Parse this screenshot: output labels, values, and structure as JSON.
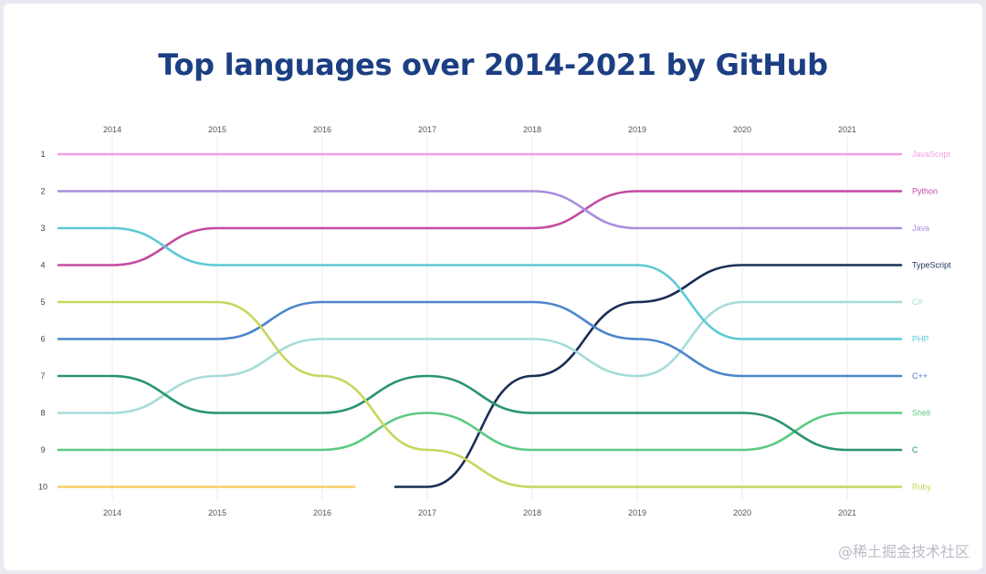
{
  "chart_data": {
    "type": "line",
    "subtype": "bump",
    "title": "Top languages over 2014-2021 by GitHub",
    "years": [
      "2014",
      "2015",
      "2016",
      "2017",
      "2018",
      "2019",
      "2020",
      "2021"
    ],
    "ranks": [
      "1",
      "2",
      "3",
      "4",
      "5",
      "6",
      "7",
      "8",
      "9",
      "10"
    ],
    "grid": "vertical",
    "series": [
      {
        "name": "JavaScript",
        "color": "#f39fe4",
        "ranks": [
          1,
          1,
          1,
          1,
          1,
          1,
          1,
          1
        ]
      },
      {
        "name": "Python",
        "color": "#c44aa3",
        "ranks": [
          4,
          3,
          3,
          3,
          3,
          2,
          2,
          2
        ]
      },
      {
        "name": "Java",
        "color": "#a98fdc",
        "ranks": [
          2,
          2,
          2,
          2,
          2,
          3,
          3,
          3
        ]
      },
      {
        "name": "TypeScript",
        "color": "#1a2d55",
        "ranks": [
          null,
          null,
          null,
          10,
          7,
          5,
          4,
          4
        ]
      },
      {
        "name": "C#",
        "color": "#a5dcd9",
        "ranks": [
          8,
          7,
          6,
          6,
          6,
          7,
          5,
          5
        ]
      },
      {
        "name": "PHP",
        "color": "#5ec9d6",
        "ranks": [
          3,
          4,
          4,
          4,
          4,
          4,
          6,
          6
        ]
      },
      {
        "name": "C++",
        "color": "#4d86cb",
        "ranks": [
          6,
          6,
          5,
          5,
          5,
          6,
          7,
          7
        ]
      },
      {
        "name": "Shell",
        "color": "#5cca82",
        "ranks": [
          9,
          9,
          9,
          8,
          9,
          9,
          9,
          8
        ]
      },
      {
        "name": "C",
        "color": "#2a9470",
        "ranks": [
          7,
          8,
          8,
          7,
          8,
          8,
          8,
          9
        ]
      },
      {
        "name": "Ruby",
        "color": "#c6d75e",
        "ranks": [
          5,
          5,
          7,
          9,
          10,
          10,
          10,
          10
        ]
      },
      {
        "name": "",
        "color": "#f5cf63",
        "ranks": [
          10,
          10,
          10,
          null,
          null,
          null,
          null,
          null
        ]
      }
    ]
  },
  "watermark": "@稀土掘金技术社区"
}
